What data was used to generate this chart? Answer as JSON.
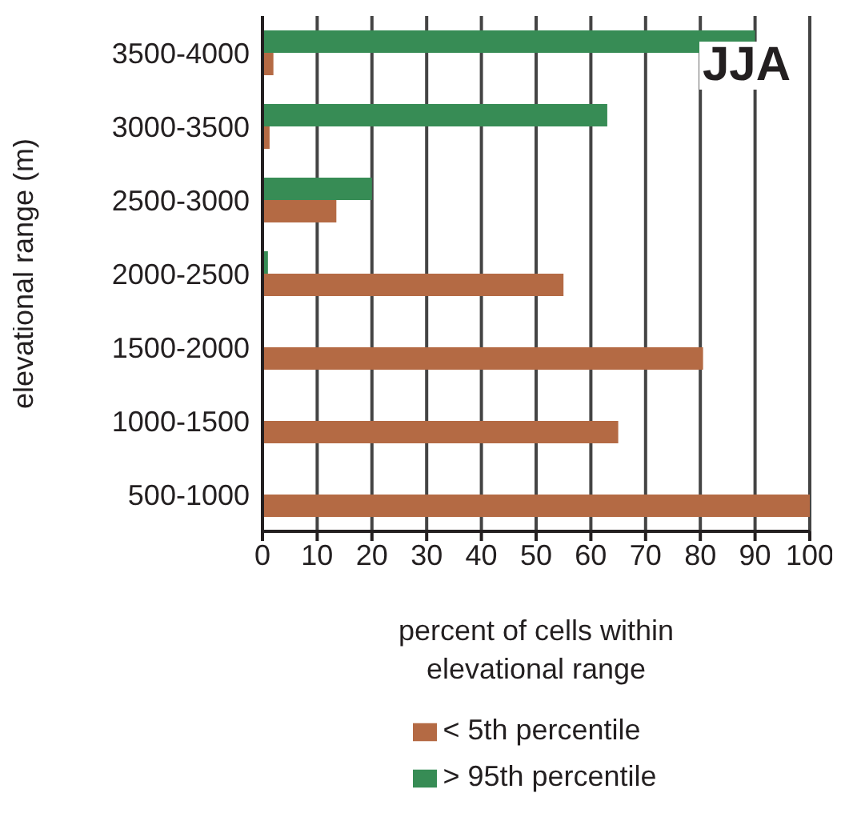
{
  "chart_data": {
    "type": "bar",
    "orientation": "horizontal",
    "xlabel": "percent of cells within elevational range",
    "ylabel": "elevational range (m)",
    "annotations": [
      "JJA"
    ],
    "categories": [
      "3500-4000",
      "3000-3500",
      "2500-3000",
      "2000-2500",
      "1500-2000",
      "1000-1500",
      "500-1000"
    ],
    "series": [
      {
        "name": "> 95th percentile",
        "color": "#378c55",
        "values": [
          90,
          63,
          20,
          1,
          0,
          0,
          0
        ]
      },
      {
        "name": "< 5th percentile",
        "color": "#b46a44",
        "values": [
          2,
          1.3,
          13.5,
          55,
          80.5,
          65,
          100
        ]
      }
    ],
    "xlim": [
      0,
      100
    ],
    "xticks": [
      0,
      10,
      20,
      30,
      40,
      50,
      60,
      70,
      80,
      90,
      100
    ],
    "grid": "x",
    "legend": "bottom"
  }
}
